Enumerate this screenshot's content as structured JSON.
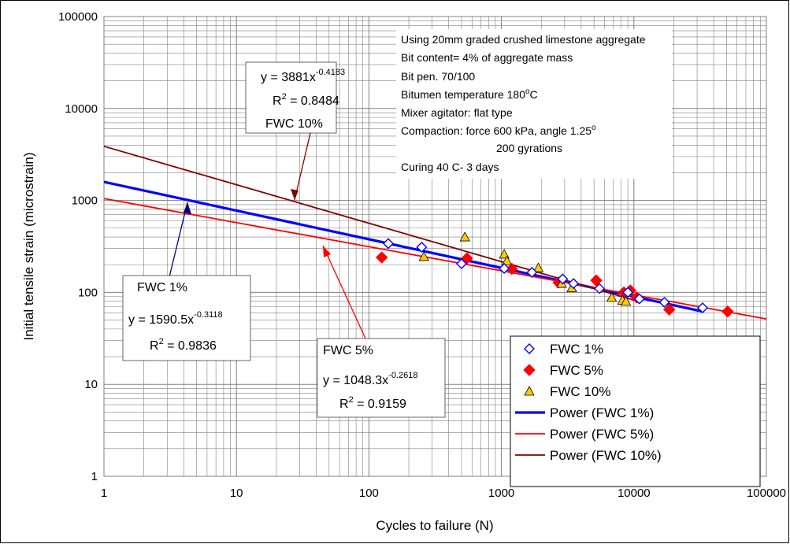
{
  "colors": {
    "fwc1": "#0000ff",
    "fwc5": "#ff0000",
    "fwc10": "#ffcc00",
    "power10": "#800000",
    "grid": "#808080",
    "power10_arrow": "#800000",
    "fwc1_arrow": "#000080",
    "fwc5_arrow": "#ff0000"
  },
  "notes": [
    "Using 20mm graded crushed limestone aggregate",
    "Bit content= 4% of aggregate mass",
    "Bit pen. 70/100",
    "Bitumen temperature 180",
    "Mixer agitator: flat type",
    "Compaction: force 600 kPa, angle 1.25",
    "200 gyrations",
    "Curing 40 C- 3 days"
  ],
  "notes_superscripts": {
    "temperature": "o",
    "temperature_unit": "C",
    "angle": "o"
  },
  "annotations": {
    "fwc10": {
      "eq_main": "y = 3881x",
      "eq_exp": "-0.4183",
      "r2_label": "R",
      "r2_sup": "2",
      "r2_value": " = 0.8484",
      "name": "FWC 10%"
    },
    "fwc1": {
      "name": "FWC 1%",
      "eq_main": "y = 1590.5x",
      "eq_exp": "-0.3118",
      "r2_label": "R",
      "r2_sup": "2",
      "r2_value": " = 0.9836"
    },
    "fwc5": {
      "name": "FWC 5%",
      "eq_main": "y = 1048.3x",
      "eq_exp": "-0.2618",
      "r2_label": "R",
      "r2_sup": "2",
      "r2_value": " = 0.9159"
    }
  },
  "chart_data": {
    "type": "scatter",
    "xlabel": "Cycles to failure (N)",
    "ylabel": "Initial tensile strain (microstrain)",
    "x_scale": "log",
    "y_scale": "log",
    "xlim": [
      1,
      100000
    ],
    "ylim": [
      1,
      100000
    ],
    "x_ticks": [
      "1",
      "10",
      "100",
      "1000",
      "10000",
      "100000"
    ],
    "y_ticks": [
      "1",
      "10",
      "100",
      "1000",
      "10000",
      "100000"
    ],
    "grid": true,
    "legend_position": "bottom-right",
    "series": [
      {
        "name": "FWC 1%",
        "marker": "open-diamond",
        "points": [
          [
            140,
            340
          ],
          [
            250,
            310
          ],
          [
            500,
            205
          ],
          [
            1050,
            182
          ],
          [
            1700,
            165
          ],
          [
            2900,
            140
          ],
          [
            3500,
            125
          ],
          [
            5500,
            110
          ],
          [
            9000,
            100
          ],
          [
            11000,
            85
          ],
          [
            17000,
            78
          ],
          [
            33000,
            68
          ]
        ]
      },
      {
        "name": "FWC 5%",
        "marker": "filled-diamond",
        "points": [
          [
            125,
            240
          ],
          [
            550,
            235
          ],
          [
            1200,
            180
          ],
          [
            2700,
            128
          ],
          [
            5200,
            135
          ],
          [
            8400,
            100
          ],
          [
            9400,
            105
          ],
          [
            10500,
            88
          ],
          [
            18500,
            65
          ],
          [
            51000,
            62
          ]
        ]
      },
      {
        "name": "FWC 10%",
        "marker": "triangle",
        "points": [
          [
            530,
            400
          ],
          [
            260,
            245
          ],
          [
            1050,
            260
          ],
          [
            1100,
            220
          ],
          [
            1900,
            185
          ],
          [
            2850,
            125
          ],
          [
            3400,
            112
          ],
          [
            6800,
            88
          ],
          [
            8200,
            82
          ],
          [
            8700,
            80
          ]
        ]
      }
    ],
    "trendlines": [
      {
        "name": "Power (FWC 1%)",
        "a": 1590.5,
        "b": -0.3118,
        "x_range": [
          1,
          33000
        ]
      },
      {
        "name": "Power (FWC 5%)",
        "a": 1048.3,
        "b": -0.2618,
        "x_range": [
          1,
          100000
        ]
      },
      {
        "name": "Power (FWC 10%)",
        "a": 3881,
        "b": -0.4183,
        "x_range": [
          1,
          10000
        ]
      }
    ]
  }
}
